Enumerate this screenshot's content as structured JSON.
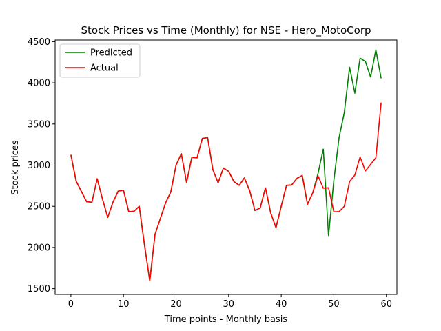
{
  "chart_data": {
    "type": "line",
    "title": "Stock Prices vs Time (Monthly) for NSE - Hero_MotoCorp",
    "xlabel": "Time points - Monthly basis",
    "ylabel": "Stock prices",
    "xlim": [
      -3,
      62
    ],
    "ylim": [
      1430,
      4520
    ],
    "xticks": [
      0,
      10,
      20,
      30,
      40,
      50,
      60
    ],
    "yticks": [
      1500,
      2000,
      2500,
      3000,
      3500,
      4000,
      4500
    ],
    "grid": false,
    "legend_position": "top-left",
    "series": [
      {
        "name": "Predicted",
        "color": "#008000",
        "x": [
          0,
          1,
          2,
          3,
          4,
          5,
          6,
          7,
          8,
          9,
          10,
          11,
          12,
          13,
          14,
          15,
          16,
          17,
          18,
          19,
          20,
          21,
          22,
          23,
          24,
          25,
          26,
          27,
          28,
          29,
          30,
          31,
          32,
          33,
          34,
          35,
          36,
          37,
          38,
          39,
          40,
          41,
          42,
          43,
          44,
          45,
          46,
          47,
          48,
          49,
          50,
          51,
          52,
          53,
          54,
          55,
          56,
          57,
          58,
          59
        ],
        "values": [
          3125,
          2805,
          2680,
          2555,
          2550,
          2835,
          2590,
          2365,
          2550,
          2685,
          2695,
          2435,
          2440,
          2500,
          2030,
          1595,
          2160,
          2350,
          2540,
          2675,
          3000,
          3140,
          2790,
          3095,
          3090,
          3325,
          3335,
          2945,
          2785,
          2965,
          2925,
          2800,
          2755,
          2845,
          2690,
          2450,
          2480,
          2725,
          2420,
          2240,
          2500,
          2755,
          2760,
          2840,
          2875,
          2525,
          2665,
          2900,
          3195,
          2145,
          2810,
          3335,
          3640,
          4190,
          3875,
          4300,
          4260,
          4070,
          4400,
          4055
        ]
      },
      {
        "name": "Actual",
        "color": "#ff0000",
        "x": [
          0,
          1,
          2,
          3,
          4,
          5,
          6,
          7,
          8,
          9,
          10,
          11,
          12,
          13,
          14,
          15,
          16,
          17,
          18,
          19,
          20,
          21,
          22,
          23,
          24,
          25,
          26,
          27,
          28,
          29,
          30,
          31,
          32,
          33,
          34,
          35,
          36,
          37,
          38,
          39,
          40,
          41,
          42,
          43,
          44,
          45,
          46,
          47,
          48,
          49,
          50,
          51,
          52,
          53,
          54,
          55,
          56,
          57,
          58,
          59
        ],
        "values": [
          3125,
          2805,
          2680,
          2555,
          2550,
          2835,
          2590,
          2365,
          2550,
          2685,
          2695,
          2435,
          2440,
          2500,
          2030,
          1595,
          2160,
          2350,
          2540,
          2675,
          3000,
          3140,
          2790,
          3095,
          3090,
          3325,
          3335,
          2945,
          2785,
          2965,
          2925,
          2800,
          2755,
          2845,
          2690,
          2450,
          2480,
          2725,
          2420,
          2240,
          2500,
          2755,
          2760,
          2840,
          2875,
          2525,
          2665,
          2870,
          2720,
          2725,
          2435,
          2435,
          2500,
          2800,
          2880,
          3100,
          2930,
          3010,
          3090,
          3760
        ]
      }
    ]
  }
}
